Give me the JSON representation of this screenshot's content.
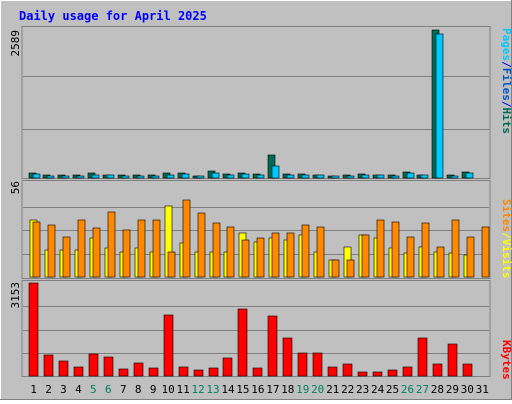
{
  "chart_data": [
    {
      "type": "bar",
      "title": "Daily usage for April 2025",
      "categories": [
        "1",
        "2",
        "3",
        "4",
        "5",
        "6",
        "7",
        "8",
        "9",
        "10",
        "11",
        "12",
        "13",
        "14",
        "15",
        "16",
        "17",
        "18",
        "19",
        "20",
        "21",
        "22",
        "23",
        "24",
        "25",
        "26",
        "27",
        "28",
        "29",
        "30",
        "31"
      ],
      "weekend_days": [
        "5",
        "6",
        "12",
        "13",
        "19",
        "20",
        "26",
        "27"
      ],
      "ymax_label": "2589",
      "ylim": [
        0,
        2589
      ],
      "series": [
        {
          "name": "Hits",
          "color": "#006b55",
          "values": [
            85,
            50,
            45,
            50,
            80,
            60,
            55,
            55,
            50,
            85,
            80,
            40,
            120,
            70,
            90,
            65,
            400,
            65,
            70,
            55,
            40,
            50,
            75,
            60,
            50,
            110,
            55,
            2560,
            50,
            100,
            0
          ]
        },
        {
          "name": "Files",
          "color": "#0055cc",
          "values": [
            0,
            0,
            0,
            0,
            0,
            0,
            0,
            0,
            0,
            0,
            0,
            0,
            0,
            0,
            0,
            0,
            0,
            0,
            0,
            0,
            0,
            0,
            0,
            0,
            0,
            0,
            0,
            0,
            0,
            0,
            0
          ]
        },
        {
          "name": "Pages",
          "color": "#00c8ff",
          "values": [
            70,
            40,
            35,
            40,
            60,
            45,
            40,
            40,
            40,
            60,
            65,
            30,
            90,
            55,
            70,
            50,
            200,
            50,
            55,
            45,
            30,
            40,
            55,
            45,
            40,
            90,
            45,
            2480,
            40,
            80,
            0
          ]
        }
      ]
    },
    {
      "type": "bar",
      "categories": [
        "1",
        "2",
        "3",
        "4",
        "5",
        "6",
        "7",
        "8",
        "9",
        "10",
        "11",
        "12",
        "13",
        "14",
        "15",
        "16",
        "17",
        "18",
        "19",
        "20",
        "21",
        "22",
        "23",
        "24",
        "25",
        "26",
        "27",
        "28",
        "29",
        "30",
        "31"
      ],
      "ymax_label": "56",
      "ylim": [
        0,
        56
      ],
      "series": [
        {
          "name": "Visits",
          "color": "#ffff00",
          "values": [
            34,
            16,
            16,
            16,
            23,
            17,
            15,
            17,
            15,
            42,
            20,
            15,
            15,
            15,
            26,
            21,
            23,
            22,
            25,
            15,
            10,
            18,
            25,
            23,
            17,
            14,
            18,
            15,
            14,
            13,
            0
          ]
        },
        {
          "name": "Sites",
          "color": "#ff8800",
          "values": [
            33,
            31,
            24,
            34,
            29,
            39,
            28,
            34,
            34,
            15,
            46,
            38,
            32,
            30,
            22,
            23,
            26,
            26,
            31,
            30,
            10,
            10,
            25,
            34,
            33,
            24,
            32,
            18,
            34,
            24,
            30
          ]
        }
      ]
    },
    {
      "type": "bar",
      "categories": [
        "1",
        "2",
        "3",
        "4",
        "5",
        "6",
        "7",
        "8",
        "9",
        "10",
        "11",
        "12",
        "13",
        "14",
        "15",
        "16",
        "17",
        "18",
        "19",
        "20",
        "21",
        "22",
        "23",
        "24",
        "25",
        "26",
        "27",
        "28",
        "29",
        "30",
        "31"
      ],
      "ymax_label": "3153",
      "ylim": [
        0,
        3153
      ],
      "series": [
        {
          "name": "KBytes",
          "color": "#ff0000",
          "values": [
            3150,
            700,
            510,
            320,
            740,
            650,
            250,
            450,
            260,
            2060,
            310,
            220,
            260,
            610,
            2270,
            260,
            2020,
            1280,
            780,
            780,
            310,
            390,
            130,
            130,
            190,
            320,
            1300,
            420,
            1070,
            420,
            0
          ]
        }
      ]
    }
  ],
  "legend": {
    "panel1": [
      "Pages",
      "/",
      "Files",
      "/",
      "Hits"
    ],
    "panel2": [
      "Sites",
      "/",
      "Visits"
    ],
    "panel3": [
      "KBytes"
    ]
  },
  "colors": {
    "frame_bg": "#c0c0c0",
    "plot_bg": "#c0c0c0",
    "title": "#0000ff",
    "weekday_label": "#000000",
    "weekend_label": "#00805c",
    "legend_separator": "#0000ff"
  }
}
